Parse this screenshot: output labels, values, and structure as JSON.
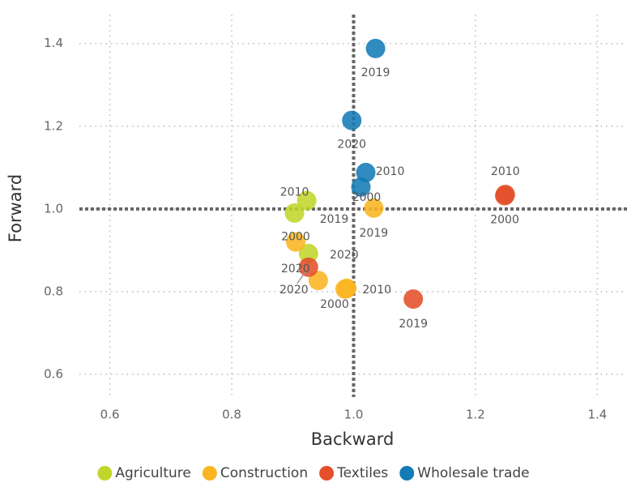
{
  "chart_data": {
    "type": "scatter",
    "x_label": "Backward",
    "y_label": "Forward",
    "xlim": [
      0.55,
      1.45
    ],
    "ylim": [
      0.545,
      1.47
    ],
    "xticks": [
      0.6,
      0.8,
      {
        "value": 1,
        "label": "1.0"
      },
      1.2,
      1.4
    ],
    "yticks": [
      0.6,
      0.8,
      {
        "value": 1,
        "label": "1.0"
      },
      1.2,
      1.4
    ],
    "grid": true,
    "reference_lines": {
      "x": 1,
      "y": 1
    },
    "legend": "bottom",
    "series": [
      {
        "name": "Agriculture",
        "color": "#c2d62a",
        "x": [
          0.923,
          0.903,
          0.926
        ],
        "y": [
          1.02,
          0.99,
          0.892
        ],
        "labels": [
          "2010",
          "2019",
          "2020"
        ]
      },
      {
        "name": "Construction",
        "color": "#fbb521",
        "x": [
          0.905,
          1.033,
          0.942,
          0.989,
          0.986
        ],
        "y": [
          0.92,
          1.002,
          0.827,
          0.808,
          0.806
        ],
        "labels": [
          "2000",
          "2019",
          "2020",
          "2010",
          "2000"
        ]
      },
      {
        "name": "Textiles",
        "color": "#e4502a",
        "x": [
          1.249,
          1.248,
          1.098,
          0.926
        ],
        "y": [
          1.035,
          1.032,
          0.782,
          0.859
        ],
        "labels": [
          "2010",
          "2000",
          "2019",
          "2020"
        ]
      },
      {
        "name": "Wholesale trade",
        "color": "#137bb6",
        "x": [
          1.036,
          0.997,
          1.02,
          1.012
        ],
        "y": [
          1.388,
          1.214,
          1.088,
          1.053
        ],
        "labels": [
          "2019",
          "2020",
          "2010",
          "2000"
        ]
      }
    ]
  }
}
